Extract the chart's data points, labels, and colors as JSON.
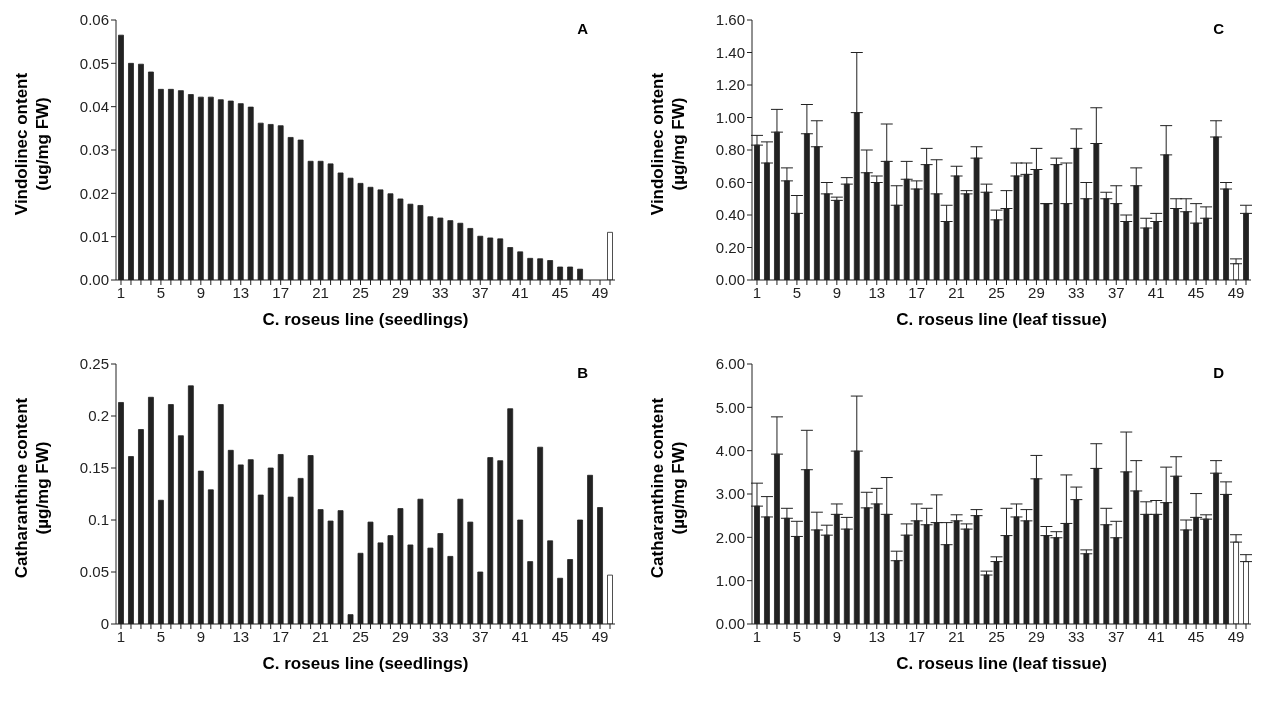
{
  "chart_data": [
    {
      "type": "bar",
      "title": "A",
      "xlabel": "C. roseus line (seedlings)",
      "ylabel": "Vindolinec ontent\n(ug/mg FW)",
      "categories": [
        "1",
        null,
        null,
        null,
        "5",
        null,
        null,
        null,
        "9",
        null,
        null,
        null,
        "13",
        null,
        null,
        null,
        "17",
        null,
        null,
        null,
        "21",
        null,
        null,
        null,
        "25",
        null,
        null,
        null,
        "29",
        null,
        null,
        null,
        "33",
        null,
        null,
        null,
        "37",
        null,
        null,
        null,
        "41",
        null,
        null,
        null,
        "45",
        null,
        null,
        null,
        "49",
        null
      ],
      "values": [
        0.0565,
        0.05,
        0.0498,
        0.048,
        0.044,
        0.044,
        0.0437,
        0.0428,
        0.0422,
        0.0422,
        0.0416,
        0.0413,
        0.0407,
        0.0399,
        0.0362,
        0.0359,
        0.0356,
        0.0329,
        0.0323,
        0.0274,
        0.0274,
        0.0268,
        0.0247,
        0.0235,
        0.0223,
        0.0214,
        0.0208,
        0.0199,
        0.0187,
        0.0175,
        0.0172,
        0.0146,
        0.0143,
        0.0137,
        0.0131,
        0.0119,
        0.0101,
        0.0097,
        0.0095,
        0.0075,
        0.0065,
        0.005,
        0.0049,
        0.0045,
        0.003,
        0.003,
        0.0025,
        null,
        null,
        0.011
      ],
      "colors": [
        "#222222",
        "#222222",
        "#222222",
        "#222222",
        "#222222",
        "#222222",
        "#222222",
        "#222222",
        "#222222",
        "#222222",
        "#222222",
        "#222222",
        "#222222",
        "#222222",
        "#222222",
        "#222222",
        "#222222",
        "#222222",
        "#222222",
        "#222222",
        "#222222",
        "#222222",
        "#222222",
        "#222222",
        "#222222",
        "#222222",
        "#222222",
        "#222222",
        "#222222",
        "#222222",
        "#222222",
        "#222222",
        "#222222",
        "#222222",
        "#222222",
        "#222222",
        "#222222",
        "#222222",
        "#222222",
        "#222222",
        "#222222",
        "#222222",
        "#222222",
        "#222222",
        "#222222",
        "#222222",
        "#222222",
        "#222222",
        "#222222",
        "#ffffff"
      ],
      "ylim": [
        0,
        0.06
      ],
      "yticks": [
        {
          "value": 0,
          "label": "0.00"
        },
        {
          "value": 0.01,
          "label": "0.01"
        },
        {
          "value": 0.02,
          "label": "0.02"
        },
        {
          "value": 0.03,
          "label": "0.03"
        },
        {
          "value": 0.04,
          "label": "0.04"
        },
        {
          "value": 0.05,
          "label": "0.05"
        },
        {
          "value": 0.06,
          "label": "0.06"
        }
      ]
    },
    {
      "type": "bar",
      "title": "C",
      "xlabel": "C. roseus line (leaf tissue)",
      "ylabel": "Vindolinec ontent\n(µg/mg FW)",
      "categories": [
        "1",
        null,
        null,
        null,
        "5",
        null,
        null,
        null,
        "9",
        null,
        null,
        null,
        "13",
        null,
        null,
        null,
        "17",
        null,
        null,
        null,
        "21",
        null,
        null,
        null,
        "25",
        null,
        null,
        null,
        "29",
        null,
        null,
        null,
        "33",
        null,
        null,
        null,
        "37",
        null,
        null,
        null,
        "41",
        null,
        null,
        null,
        "45",
        null,
        null,
        null,
        "49",
        null
      ],
      "values": [
        0.83,
        0.72,
        0.91,
        0.61,
        0.41,
        0.9,
        0.82,
        0.53,
        0.49,
        0.59,
        1.03,
        0.66,
        0.6,
        0.73,
        0.46,
        0.62,
        0.56,
        0.71,
        0.53,
        0.36,
        0.64,
        0.53,
        0.75,
        0.54,
        0.37,
        0.44,
        0.64,
        0.65,
        0.68,
        0.47,
        0.71,
        0.47,
        0.81,
        0.5,
        0.84,
        0.5,
        0.47,
        0.36,
        0.58,
        0.32,
        0.36,
        0.77,
        0.44,
        0.42,
        0.35,
        0.38,
        0.88,
        0.56,
        0.1,
        0.41
      ],
      "errors": [
        [
          0.83,
          0.89
        ],
        [
          0.72,
          0.85
        ],
        [
          0.91,
          1.05
        ],
        [
          0.61,
          0.69
        ],
        [
          0.41,
          0.52
        ],
        [
          0.9,
          1.08
        ],
        [
          0.82,
          0.98
        ],
        [
          0.53,
          0.6
        ],
        [
          0.49,
          0.51
        ],
        [
          0.59,
          0.63
        ],
        [
          1.03,
          1.4
        ],
        [
          0.66,
          0.8
        ],
        [
          0.6,
          0.64
        ],
        [
          0.73,
          0.96
        ],
        [
          0.46,
          0.58
        ],
        [
          0.62,
          0.73
        ],
        [
          0.56,
          0.61
        ],
        [
          0.71,
          0.81
        ],
        [
          0.53,
          0.74
        ],
        [
          0.36,
          0.46
        ],
        [
          0.64,
          0.7
        ],
        [
          0.53,
          0.55
        ],
        [
          0.75,
          0.82
        ],
        [
          0.54,
          0.59
        ],
        [
          0.37,
          0.43
        ],
        [
          0.44,
          0.55
        ],
        [
          0.64,
          0.72
        ],
        [
          0.65,
          0.72
        ],
        [
          0.68,
          0.81
        ],
        [
          0.47,
          0.47
        ],
        [
          0.71,
          0.75
        ],
        [
          0.47,
          0.72
        ],
        [
          0.81,
          0.93
        ],
        [
          0.5,
          0.6
        ],
        [
          0.84,
          1.06
        ],
        [
          0.5,
          0.54
        ],
        [
          0.47,
          0.58
        ],
        [
          0.36,
          0.4
        ],
        [
          0.58,
          0.69
        ],
        [
          0.32,
          0.38
        ],
        [
          0.36,
          0.41
        ],
        [
          0.77,
          0.95
        ],
        [
          0.44,
          0.5
        ],
        [
          0.42,
          0.5
        ],
        [
          0.35,
          0.47
        ],
        [
          0.38,
          0.45
        ],
        [
          0.88,
          0.98
        ],
        [
          0.56,
          0.6
        ],
        [
          0.1,
          0.13
        ],
        [
          0.41,
          0.46
        ]
      ],
      "colors": [
        "#222222",
        "#222222",
        "#222222",
        "#222222",
        "#222222",
        "#222222",
        "#222222",
        "#222222",
        "#222222",
        "#222222",
        "#222222",
        "#222222",
        "#222222",
        "#222222",
        "#222222",
        "#222222",
        "#222222",
        "#222222",
        "#222222",
        "#222222",
        "#222222",
        "#222222",
        "#222222",
        "#222222",
        "#222222",
        "#222222",
        "#222222",
        "#222222",
        "#222222",
        "#222222",
        "#222222",
        "#222222",
        "#222222",
        "#222222",
        "#222222",
        "#222222",
        "#222222",
        "#222222",
        "#222222",
        "#222222",
        "#222222",
        "#222222",
        "#222222",
        "#222222",
        "#222222",
        "#222222",
        "#222222",
        "#222222",
        "#ffffff",
        "#222222"
      ],
      "ylim": [
        0,
        1.6
      ],
      "yticks": [
        {
          "value": 0,
          "label": "0.00"
        },
        {
          "value": 0.2,
          "label": "0.20"
        },
        {
          "value": 0.4,
          "label": "0.40"
        },
        {
          "value": 0.6,
          "label": "0.60"
        },
        {
          "value": 0.8,
          "label": "0.80"
        },
        {
          "value": 1.0,
          "label": "1.00"
        },
        {
          "value": 1.2,
          "label": "1.20"
        },
        {
          "value": 1.4,
          "label": "1.40"
        },
        {
          "value": 1.6,
          "label": "1.60"
        }
      ]
    },
    {
      "type": "bar",
      "title": "B",
      "xlabel": "C. roseus line (seedlings)",
      "ylabel": "Catharanthine content\n(µg/mg FW)",
      "categories": [
        "1",
        null,
        null,
        null,
        "5",
        null,
        null,
        null,
        "9",
        null,
        null,
        null,
        "13",
        null,
        null,
        null,
        "17",
        null,
        null,
        null,
        "21",
        null,
        null,
        null,
        "25",
        null,
        null,
        null,
        "29",
        null,
        null,
        null,
        "33",
        null,
        null,
        null,
        "37",
        null,
        null,
        null,
        "41",
        null,
        null,
        null,
        "45",
        null,
        null,
        null,
        "49",
        null
      ],
      "values": [
        0.213,
        0.161,
        0.187,
        0.218,
        0.119,
        0.211,
        0.181,
        0.229,
        0.147,
        0.129,
        0.211,
        0.167,
        0.153,
        0.158,
        0.124,
        0.15,
        0.163,
        0.122,
        0.14,
        0.162,
        0.11,
        0.099,
        0.109,
        0.009,
        0.068,
        0.098,
        0.078,
        0.085,
        0.111,
        0.076,
        0.12,
        0.073,
        0.087,
        0.065,
        0.12,
        0.098,
        0.05,
        0.16,
        0.157,
        0.207,
        0.1,
        0.06,
        0.17,
        0.08,
        0.044,
        0.062,
        0.1,
        0.143,
        0.112,
        0.047
      ],
      "colors": [
        "#222222",
        "#222222",
        "#222222",
        "#222222",
        "#222222",
        "#222222",
        "#222222",
        "#222222",
        "#222222",
        "#222222",
        "#222222",
        "#222222",
        "#222222",
        "#222222",
        "#222222",
        "#222222",
        "#222222",
        "#222222",
        "#222222",
        "#222222",
        "#222222",
        "#222222",
        "#222222",
        "#222222",
        "#222222",
        "#222222",
        "#222222",
        "#222222",
        "#222222",
        "#222222",
        "#222222",
        "#222222",
        "#222222",
        "#222222",
        "#222222",
        "#222222",
        "#222222",
        "#222222",
        "#222222",
        "#222222",
        "#222222",
        "#222222",
        "#222222",
        "#222222",
        "#222222",
        "#222222",
        "#222222",
        "#222222",
        "#222222",
        "#ffffff"
      ],
      "ylim": [
        0,
        0.25
      ],
      "yticks": [
        0,
        0.05,
        0.1,
        0.15,
        0.2,
        0.25
      ]
    },
    {
      "type": "bar",
      "title": "D",
      "xlabel": "C. roseus line (leaf tissue)",
      "ylabel": "Catharanthine content\n(µg/mg FW)",
      "categories": [
        "1",
        null,
        null,
        null,
        "5",
        null,
        null,
        null,
        "9",
        null,
        null,
        null,
        "13",
        null,
        null,
        null,
        "17",
        null,
        null,
        null,
        "21",
        null,
        null,
        null,
        "25",
        null,
        null,
        null,
        "29",
        null,
        null,
        null,
        "33",
        null,
        null,
        null,
        "37",
        null,
        null,
        null,
        "41",
        null,
        null,
        null,
        "45",
        null,
        null,
        null,
        "49",
        null
      ],
      "values": [
        2.72,
        2.47,
        3.92,
        2.44,
        2.02,
        3.56,
        2.17,
        2.05,
        2.53,
        2.19,
        3.99,
        2.68,
        2.77,
        2.53,
        1.46,
        2.05,
        2.38,
        2.29,
        2.34,
        1.83,
        2.38,
        2.19,
        2.5,
        1.13,
        1.44,
        2.04,
        2.47,
        2.38,
        3.35,
        2.04,
        1.99,
        2.32,
        2.87,
        1.62,
        3.59,
        2.29,
        1.99,
        3.51,
        3.07,
        2.53,
        2.53,
        2.8,
        3.41,
        2.17,
        2.46,
        2.42,
        3.48,
        2.99,
        1.89,
        1.44
      ],
      "errors": [
        [
          2.72,
          3.25
        ],
        [
          2.47,
          2.94
        ],
        [
          3.92,
          4.78
        ],
        [
          2.44,
          2.67
        ],
        [
          2.02,
          2.37
        ],
        [
          3.56,
          4.47
        ],
        [
          2.17,
          2.58
        ],
        [
          2.05,
          2.28
        ],
        [
          2.53,
          2.77
        ],
        [
          2.19,
          2.46
        ],
        [
          3.99,
          5.26
        ],
        [
          2.68,
          3.04
        ],
        [
          2.77,
          3.13
        ],
        [
          2.53,
          3.38
        ],
        [
          1.46,
          1.68
        ],
        [
          2.05,
          2.31
        ],
        [
          2.38,
          2.77
        ],
        [
          2.29,
          2.67
        ],
        [
          2.34,
          2.98
        ],
        [
          1.83,
          2.34
        ],
        [
          2.38,
          2.52
        ],
        [
          2.19,
          2.31
        ],
        [
          2.5,
          2.64
        ],
        [
          1.13,
          1.22
        ],
        [
          1.44,
          1.55
        ],
        [
          2.04,
          2.67
        ],
        [
          2.47,
          2.77
        ],
        [
          2.38,
          2.64
        ],
        [
          3.35,
          3.89
        ],
        [
          2.04,
          2.25
        ],
        [
          1.99,
          2.13
        ],
        [
          2.32,
          3.44
        ],
        [
          2.87,
          3.16
        ],
        [
          1.62,
          1.71
        ],
        [
          3.59,
          4.16
        ],
        [
          2.29,
          2.67
        ],
        [
          1.99,
          2.37
        ],
        [
          3.51,
          4.43
        ],
        [
          3.07,
          3.77
        ],
        [
          2.53,
          2.82
        ],
        [
          2.53,
          2.85
        ],
        [
          2.8,
          3.62
        ],
        [
          3.41,
          3.86
        ],
        [
          2.17,
          2.4
        ],
        [
          2.46,
          3.01
        ],
        [
          2.42,
          2.52
        ],
        [
          3.48,
          3.77
        ],
        [
          2.99,
          3.28
        ],
        [
          1.89,
          2.06
        ],
        [
          1.44,
          1.6
        ]
      ],
      "colors": [
        "#222222",
        "#222222",
        "#222222",
        "#222222",
        "#222222",
        "#222222",
        "#222222",
        "#222222",
        "#222222",
        "#222222",
        "#222222",
        "#222222",
        "#222222",
        "#222222",
        "#222222",
        "#222222",
        "#222222",
        "#222222",
        "#222222",
        "#222222",
        "#222222",
        "#222222",
        "#222222",
        "#222222",
        "#222222",
        "#222222",
        "#222222",
        "#222222",
        "#222222",
        "#222222",
        "#222222",
        "#222222",
        "#222222",
        "#222222",
        "#222222",
        "#222222",
        "#222222",
        "#222222",
        "#222222",
        "#222222",
        "#222222",
        "#222222",
        "#222222",
        "#222222",
        "#222222",
        "#222222",
        "#222222",
        "#222222",
        "#ffffff",
        "#ffffff"
      ],
      "ylim": [
        0,
        6
      ],
      "yticks": [
        {
          "value": 0,
          "label": "0.00"
        },
        {
          "value": 1,
          "label": "1.00"
        },
        {
          "value": 2,
          "label": "2.00"
        },
        {
          "value": 3,
          "label": "3.00"
        },
        {
          "value": 4,
          "label": "4.00"
        },
        {
          "value": 5,
          "label": "5.00"
        },
        {
          "value": 6,
          "label": "6.00"
        }
      ]
    }
  ]
}
